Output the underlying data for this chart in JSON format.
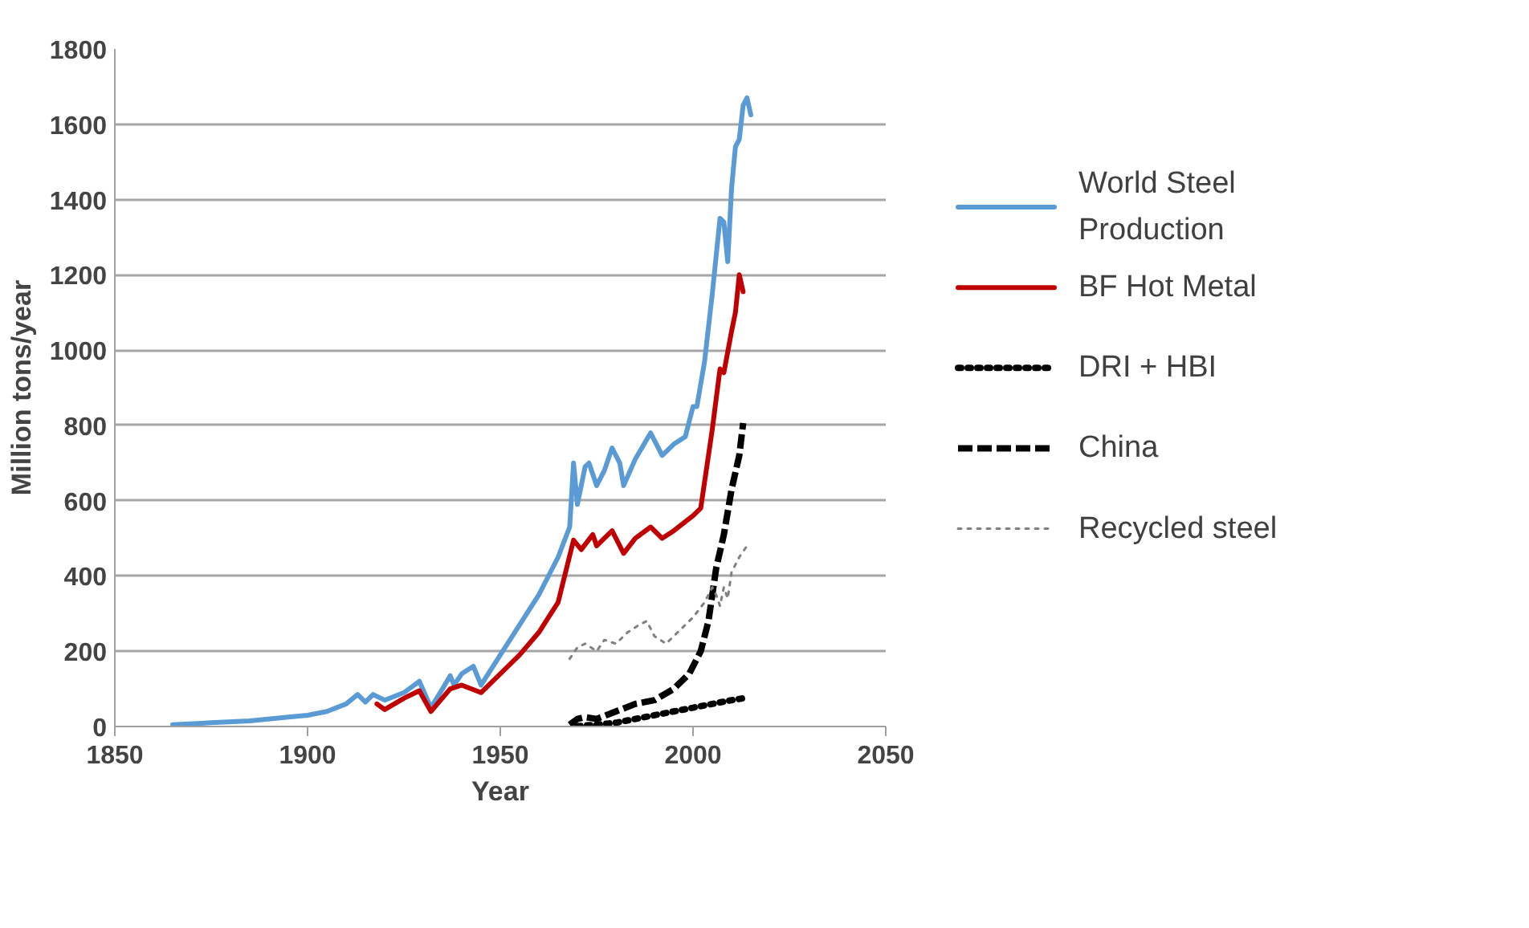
{
  "chart_data": {
    "type": "line",
    "xlabel": "Year",
    "ylabel": "Million tons/year",
    "xlim": [
      1850,
      2050
    ],
    "xticks": [
      1850,
      1900,
      1950,
      2000,
      2050
    ],
    "ylim": [
      0,
      1800
    ],
    "yticks": [
      0,
      200,
      400,
      600,
      800,
      1000,
      1200,
      1400,
      1600,
      1800
    ],
    "grid": "y",
    "legend": "right",
    "series": [
      {
        "name": "World Steel Production",
        "color": "#5b9bd5",
        "line_style": "solid",
        "x": [
          1865,
          1875,
          1885,
          1895,
          1900,
          1905,
          1910,
          1913,
          1915,
          1917,
          1920,
          1925,
          1929,
          1932,
          1935,
          1937,
          1938,
          1940,
          1943,
          1945,
          1950,
          1955,
          1960,
          1965,
          1968,
          1969,
          1970,
          1972,
          1973,
          1975,
          1977,
          1979,
          1981,
          1982,
          1985,
          1989,
          1992,
          1995,
          1998,
          2000,
          2001,
          2003,
          2005,
          2007,
          2008,
          2009,
          2010,
          2011,
          2012,
          2013,
          2014,
          2015
        ],
        "values": [
          5,
          10,
          15,
          25,
          30,
          40,
          60,
          85,
          65,
          85,
          70,
          90,
          120,
          50,
          100,
          135,
          110,
          140,
          160,
          110,
          190,
          270,
          350,
          450,
          530,
          700,
          590,
          690,
          700,
          640,
          680,
          740,
          700,
          640,
          710,
          780,
          720,
          750,
          770,
          850,
          850,
          970,
          1150,
          1350,
          1340,
          1235,
          1430,
          1540,
          1560,
          1650,
          1670,
          1625
        ]
      },
      {
        "name": "BF Hot Metal",
        "color": "#c00000",
        "line_style": "solid",
        "x": [
          1918,
          1920,
          1925,
          1929,
          1932,
          1937,
          1940,
          1945,
          1950,
          1955,
          1960,
          1965,
          1969,
          1971,
          1974,
          1975,
          1979,
          1982,
          1985,
          1989,
          1992,
          1995,
          2000,
          2002,
          2003,
          2005,
          2007,
          2008,
          2010,
          2011,
          2012,
          2013
        ],
        "values": [
          60,
          45,
          75,
          95,
          40,
          100,
          110,
          90,
          140,
          190,
          250,
          330,
          495,
          470,
          510,
          480,
          520,
          460,
          500,
          530,
          500,
          520,
          560,
          580,
          650,
          790,
          950,
          940,
          1050,
          1100,
          1200,
          1155
        ]
      },
      {
        "name": "DRI + HBI",
        "color": "#000000",
        "line_style": "dotted",
        "x": [
          1970,
          1975,
          1980,
          1985,
          1990,
          1995,
          2000,
          2005,
          2010,
          2013
        ],
        "values": [
          1,
          5,
          10,
          20,
          30,
          40,
          50,
          60,
          70,
          75
        ]
      },
      {
        "name": "China",
        "color": "#000000",
        "line_style": "dashed",
        "x": [
          1968,
          1970,
          1972,
          1975,
          1980,
          1985,
          1990,
          1995,
          1999,
          2002,
          2004,
          2006,
          2008,
          2010,
          2012,
          2013
        ],
        "values": [
          5,
          20,
          25,
          20,
          40,
          60,
          70,
          100,
          140,
          200,
          280,
          420,
          510,
          630,
          720,
          806
        ]
      },
      {
        "name": "Recycled steel",
        "color": "#808080",
        "line_style": "dotted",
        "x": [
          1968,
          1970,
          1972,
          1975,
          1977,
          1980,
          1983,
          1986,
          1988,
          1990,
          1993,
          1995,
          1998,
          2000,
          2003,
          2005,
          2006,
          2007,
          2008,
          2009,
          2010,
          2012,
          2014
        ],
        "values": [
          180,
          210,
          220,
          200,
          230,
          220,
          250,
          270,
          280,
          240,
          220,
          240,
          270,
          290,
          330,
          370,
          350,
          320,
          370,
          340,
          410,
          450,
          480
        ]
      }
    ]
  }
}
